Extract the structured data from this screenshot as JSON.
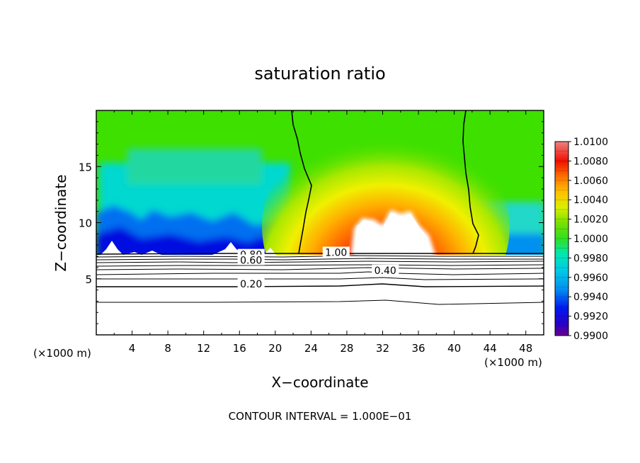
{
  "chart_data": {
    "type": "heatmap",
    "title": "saturation ratio",
    "xlabel": "X−coordinate",
    "ylabel": "Z−coordinate",
    "x_unit_left": "(×1000 m)",
    "x_unit_right": "(×1000 m)",
    "xlim": [
      0,
      50
    ],
    "ylim": [
      0,
      20
    ],
    "x_ticks": [
      4,
      8,
      12,
      16,
      20,
      24,
      28,
      32,
      36,
      40,
      44,
      48
    ],
    "y_ticks": [
      5,
      10,
      15
    ],
    "colorbar": {
      "min": 0.99,
      "max": 1.01,
      "labels": [
        "1.0100",
        "1.0080",
        "1.0060",
        "1.0040",
        "1.0020",
        "1.0000",
        "0.9980",
        "0.9960",
        "0.9940",
        "0.9920",
        "0.9900"
      ],
      "levels": [
        0.99,
        0.991,
        0.992,
        0.993,
        0.994,
        0.995,
        0.996,
        0.997,
        0.998,
        0.999,
        1.0,
        1.001,
        1.002,
        1.003,
        1.004,
        1.005,
        1.006,
        1.007,
        1.008,
        1.009,
        1.01
      ]
    },
    "contour_labels": [
      {
        "text": "1.00",
        "x": 26.8,
        "z": 7.1
      },
      {
        "text": "0.80",
        "x": 17.3,
        "z": 6.9
      },
      {
        "text": "0.60",
        "x": 17.3,
        "z": 6.4
      },
      {
        "text": "0.40",
        "x": 32.3,
        "z": 5.5
      },
      {
        "text": "0.20",
        "x": 17.3,
        "z": 4.3
      }
    ],
    "contour_interval_text": "CONTOUR INTERVAL = 1.000E−01",
    "colors": {
      "background": "#ffffff",
      "line": "#000000"
    }
  }
}
